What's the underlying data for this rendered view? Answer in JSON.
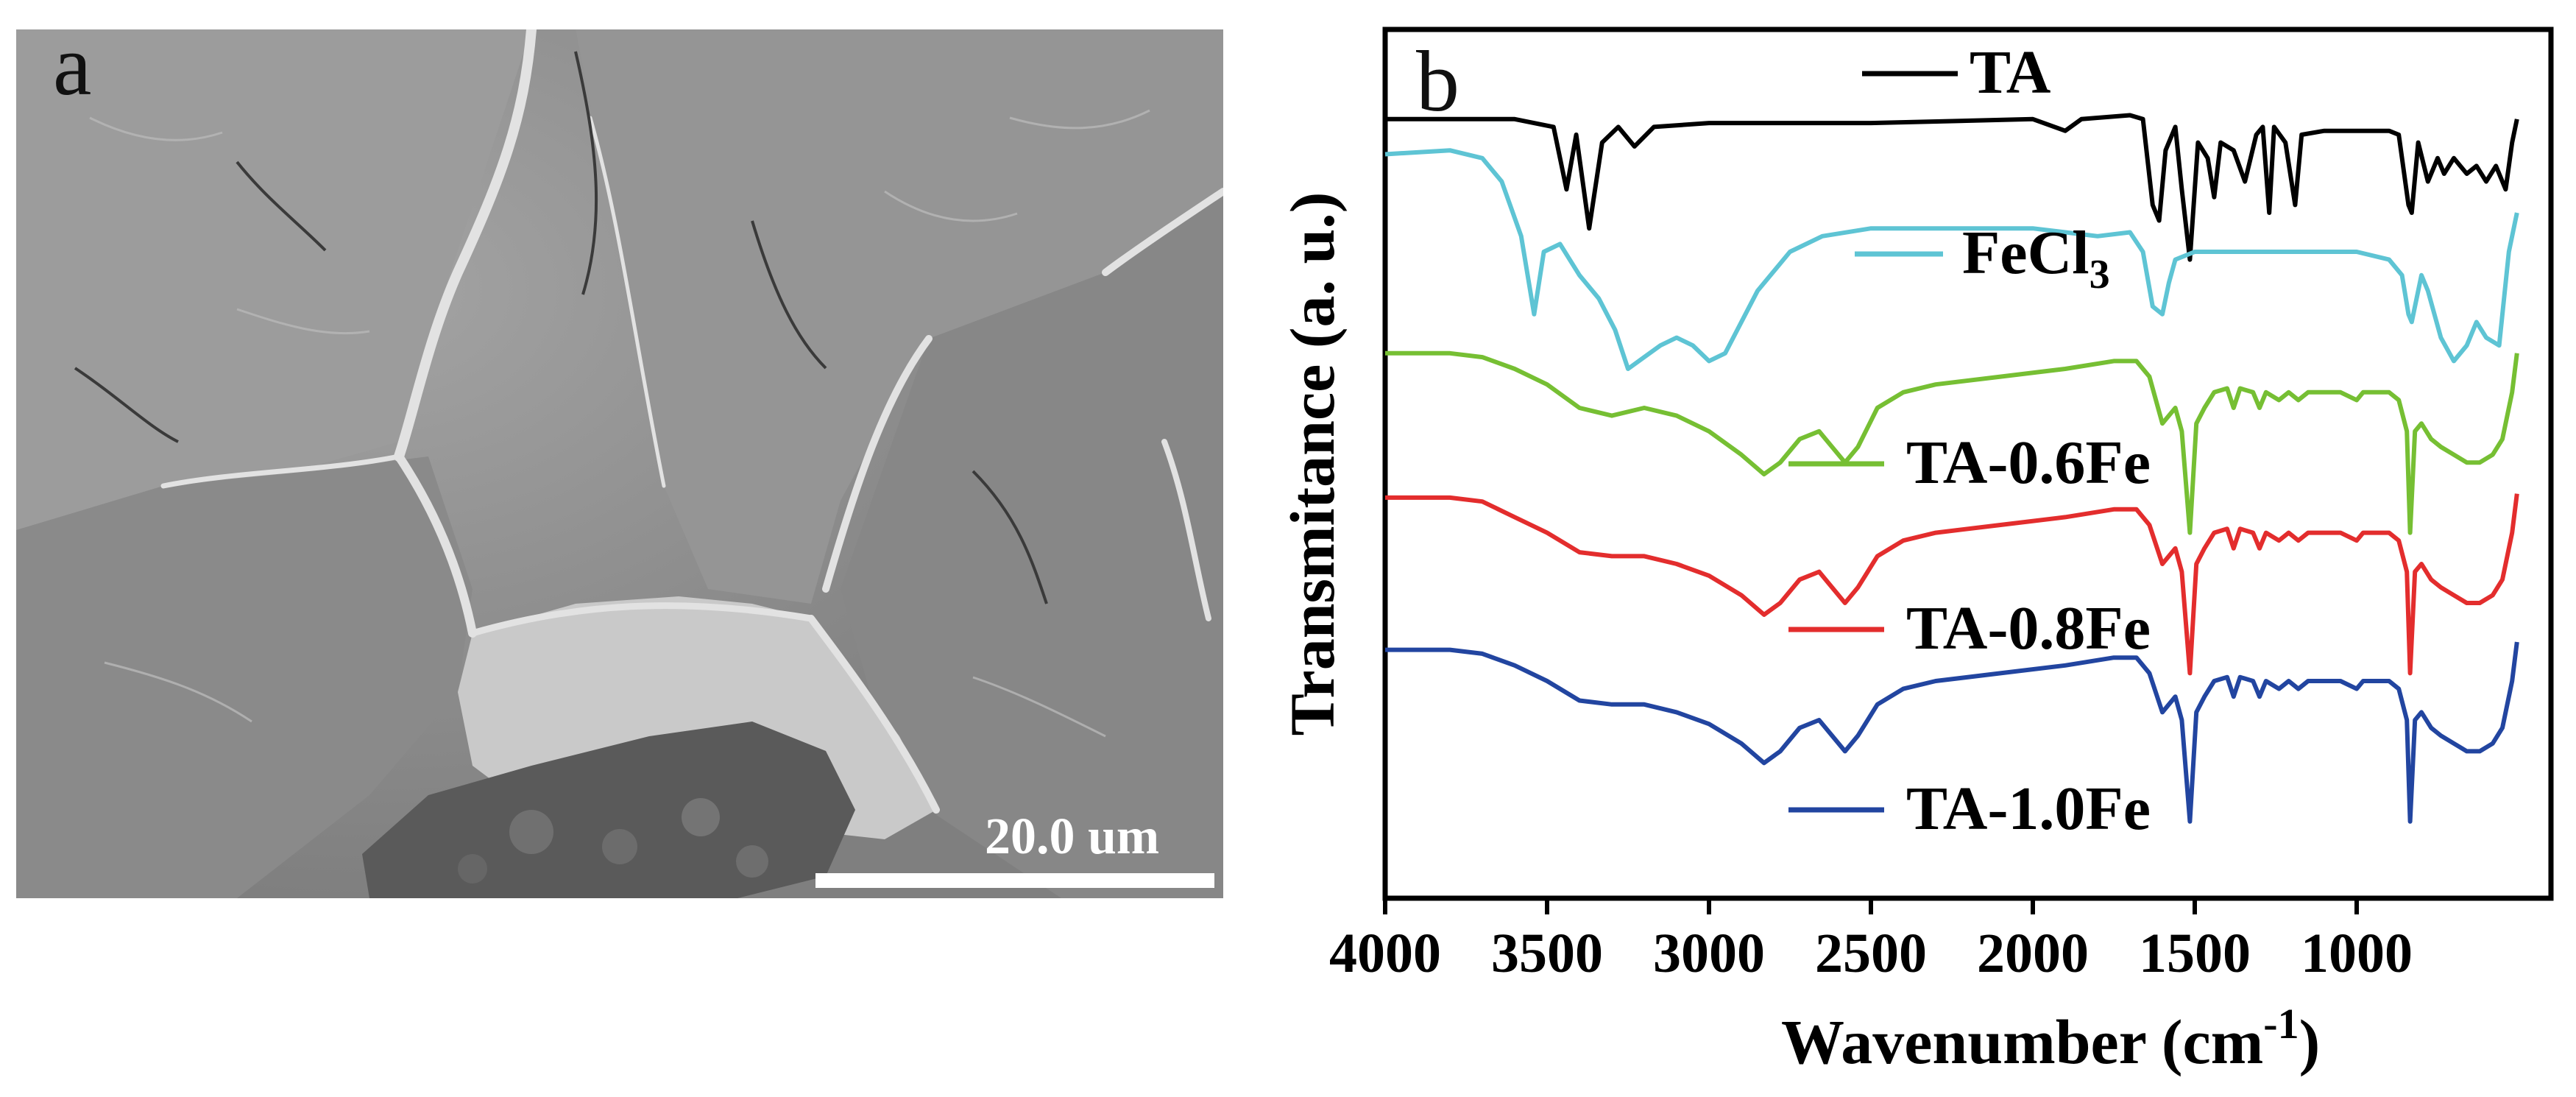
{
  "panel_a": {
    "letter": "a",
    "scale_bar_label": "20.0 um"
  },
  "chart_data": {
    "type": "line",
    "panel_letter": "b",
    "xlabel": "Wavenumber (cm",
    "xlabel_superscript": "-1",
    "xlabel_suffix": ")",
    "ylabel": "Transmitance (a. u.)",
    "xlim": [
      4000,
      400
    ],
    "x_ticks": [
      4000,
      3500,
      3000,
      2500,
      2000,
      1500,
      1000
    ],
    "x_tick_labels": [
      "4000",
      "3500",
      "3000",
      "2500",
      "2000",
      "1500",
      "1000"
    ],
    "y_ticks": [],
    "ylim": [
      0,
      100
    ],
    "series": [
      {
        "name": "TA",
        "label_main": "TA",
        "label_sub": "",
        "color": "#000000",
        "points": [
          [
            4000,
            97
          ],
          [
            3800,
            97
          ],
          [
            3600,
            97
          ],
          [
            3480,
            96
          ],
          [
            3440,
            88
          ],
          [
            3410,
            95
          ],
          [
            3370,
            83
          ],
          [
            3330,
            94
          ],
          [
            3280,
            96
          ],
          [
            3230,
            93.5
          ],
          [
            3170,
            96
          ],
          [
            3000,
            96.5
          ],
          [
            2500,
            96.5
          ],
          [
            2000,
            97
          ],
          [
            1900,
            95.5
          ],
          [
            1850,
            97
          ],
          [
            1700,
            97.5
          ],
          [
            1660,
            97
          ],
          [
            1630,
            86
          ],
          [
            1610,
            84
          ],
          [
            1590,
            93
          ],
          [
            1560,
            96
          ],
          [
            1540,
            88
          ],
          [
            1515,
            79
          ],
          [
            1490,
            94
          ],
          [
            1460,
            92
          ],
          [
            1440,
            87
          ],
          [
            1420,
            94
          ],
          [
            1380,
            93
          ],
          [
            1345,
            89
          ],
          [
            1310,
            95
          ],
          [
            1290,
            96
          ],
          [
            1270,
            85
          ],
          [
            1255,
            96
          ],
          [
            1220,
            94
          ],
          [
            1190,
            86
          ],
          [
            1170,
            95
          ],
          [
            1100,
            95.5
          ],
          [
            1000,
            95.5
          ],
          [
            950,
            95.5
          ],
          [
            900,
            95.5
          ],
          [
            870,
            95
          ],
          [
            840,
            86
          ],
          [
            830,
            85
          ],
          [
            810,
            94
          ],
          [
            780,
            89
          ],
          [
            750,
            92
          ],
          [
            730,
            90
          ],
          [
            700,
            92
          ],
          [
            660,
            90
          ],
          [
            630,
            91
          ],
          [
            600,
            89
          ],
          [
            570,
            91
          ],
          [
            540,
            88
          ],
          [
            520,
            94
          ],
          [
            505,
            97
          ]
        ]
      },
      {
        "name": "FeCl3",
        "label_main": "FeCl",
        "label_sub": "3",
        "color": "#5ec4d4",
        "points": [
          [
            4000,
            92.5
          ],
          [
            3800,
            93
          ],
          [
            3700,
            92
          ],
          [
            3640,
            89
          ],
          [
            3580,
            82
          ],
          [
            3540,
            72
          ],
          [
            3510,
            80
          ],
          [
            3460,
            81
          ],
          [
            3400,
            77
          ],
          [
            3340,
            74
          ],
          [
            3290,
            70
          ],
          [
            3250,
            65
          ],
          [
            3200,
            66.5
          ],
          [
            3150,
            68
          ],
          [
            3100,
            69
          ],
          [
            3050,
            68
          ],
          [
            3000,
            66
          ],
          [
            2950,
            67
          ],
          [
            2850,
            75
          ],
          [
            2750,
            80
          ],
          [
            2650,
            82
          ],
          [
            2500,
            83
          ],
          [
            2300,
            83
          ],
          [
            2000,
            83
          ],
          [
            1800,
            82
          ],
          [
            1700,
            82.5
          ],
          [
            1660,
            80
          ],
          [
            1630,
            73
          ],
          [
            1600,
            72
          ],
          [
            1580,
            76
          ],
          [
            1560,
            79
          ],
          [
            1500,
            80
          ],
          [
            1400,
            80
          ],
          [
            1300,
            80
          ],
          [
            1200,
            80
          ],
          [
            1000,
            80
          ],
          [
            900,
            79
          ],
          [
            860,
            77
          ],
          [
            840,
            72
          ],
          [
            830,
            71
          ],
          [
            800,
            77
          ],
          [
            780,
            75
          ],
          [
            740,
            69
          ],
          [
            700,
            66
          ],
          [
            660,
            68
          ],
          [
            630,
            71
          ],
          [
            600,
            69
          ],
          [
            560,
            68
          ],
          [
            530,
            80
          ],
          [
            505,
            85
          ]
        ]
      },
      {
        "name": "TA-0.6Fe",
        "label_main": "TA-0.6Fe",
        "label_sub": "",
        "color": "#76bf33",
        "points": [
          [
            4000,
            67
          ],
          [
            3800,
            67
          ],
          [
            3700,
            66.5
          ],
          [
            3600,
            65
          ],
          [
            3500,
            63
          ],
          [
            3400,
            60
          ],
          [
            3300,
            59
          ],
          [
            3200,
            60
          ],
          [
            3100,
            59
          ],
          [
            3000,
            57
          ],
          [
            2900,
            54
          ],
          [
            2830,
            51.5
          ],
          [
            2780,
            53
          ],
          [
            2720,
            56
          ],
          [
            2660,
            57
          ],
          [
            2620,
            55
          ],
          [
            2580,
            53
          ],
          [
            2540,
            55
          ],
          [
            2480,
            60
          ],
          [
            2400,
            62
          ],
          [
            2300,
            63
          ],
          [
            2100,
            64
          ],
          [
            1900,
            65
          ],
          [
            1750,
            66
          ],
          [
            1680,
            66
          ],
          [
            1640,
            64
          ],
          [
            1600,
            58
          ],
          [
            1560,
            60
          ],
          [
            1540,
            57
          ],
          [
            1515,
            44
          ],
          [
            1495,
            58
          ],
          [
            1470,
            60
          ],
          [
            1440,
            62
          ],
          [
            1400,
            62.5
          ],
          [
            1380,
            60
          ],
          [
            1360,
            62.5
          ],
          [
            1320,
            62
          ],
          [
            1300,
            60
          ],
          [
            1280,
            62
          ],
          [
            1240,
            61
          ],
          [
            1210,
            62
          ],
          [
            1180,
            61
          ],
          [
            1150,
            62
          ],
          [
            1100,
            62
          ],
          [
            1050,
            62
          ],
          [
            1000,
            61
          ],
          [
            980,
            62
          ],
          [
            950,
            62
          ],
          [
            900,
            62
          ],
          [
            870,
            61
          ],
          [
            845,
            57
          ],
          [
            835,
            44
          ],
          [
            820,
            57
          ],
          [
            800,
            58
          ],
          [
            770,
            56
          ],
          [
            740,
            55
          ],
          [
            700,
            54
          ],
          [
            660,
            53
          ],
          [
            620,
            53
          ],
          [
            580,
            54
          ],
          [
            550,
            56
          ],
          [
            520,
            62
          ],
          [
            505,
            67
          ]
        ]
      },
      {
        "name": "TA-0.8Fe",
        "label_main": "TA-0.8Fe",
        "label_sub": "",
        "color": "#e32d2d",
        "points": [
          [
            4000,
            48.5
          ],
          [
            3800,
            48.5
          ],
          [
            3700,
            48
          ],
          [
            3600,
            46
          ],
          [
            3500,
            44
          ],
          [
            3400,
            41.5
          ],
          [
            3300,
            41
          ],
          [
            3200,
            41
          ],
          [
            3100,
            40
          ],
          [
            3000,
            38.5
          ],
          [
            2900,
            36
          ],
          [
            2830,
            33.5
          ],
          [
            2780,
            35
          ],
          [
            2720,
            38
          ],
          [
            2660,
            39
          ],
          [
            2620,
            37
          ],
          [
            2580,
            35
          ],
          [
            2540,
            37
          ],
          [
            2480,
            41
          ],
          [
            2400,
            43
          ],
          [
            2300,
            44
          ],
          [
            2100,
            45
          ],
          [
            1900,
            46
          ],
          [
            1750,
            47
          ],
          [
            1680,
            47
          ],
          [
            1640,
            45
          ],
          [
            1600,
            40
          ],
          [
            1560,
            42
          ],
          [
            1540,
            39
          ],
          [
            1515,
            26
          ],
          [
            1495,
            40
          ],
          [
            1470,
            42
          ],
          [
            1440,
            44
          ],
          [
            1400,
            44.5
          ],
          [
            1380,
            42
          ],
          [
            1360,
            44.5
          ],
          [
            1320,
            44
          ],
          [
            1300,
            42
          ],
          [
            1280,
            44
          ],
          [
            1240,
            43
          ],
          [
            1210,
            44
          ],
          [
            1180,
            43
          ],
          [
            1150,
            44
          ],
          [
            1100,
            44
          ],
          [
            1050,
            44
          ],
          [
            1000,
            43
          ],
          [
            980,
            44
          ],
          [
            950,
            44
          ],
          [
            900,
            44
          ],
          [
            870,
            43
          ],
          [
            845,
            39
          ],
          [
            835,
            26
          ],
          [
            820,
            39
          ],
          [
            800,
            40
          ],
          [
            770,
            38
          ],
          [
            740,
            37
          ],
          [
            700,
            36
          ],
          [
            660,
            35
          ],
          [
            620,
            35
          ],
          [
            580,
            36
          ],
          [
            550,
            38
          ],
          [
            520,
            44
          ],
          [
            505,
            49
          ]
        ]
      },
      {
        "name": "TA-1.0Fe",
        "label_main": "TA-1.0Fe",
        "label_sub": "",
        "color": "#2245a0",
        "points": [
          [
            4000,
            29
          ],
          [
            3800,
            29
          ],
          [
            3700,
            28.5
          ],
          [
            3600,
            27
          ],
          [
            3500,
            25
          ],
          [
            3400,
            22.5
          ],
          [
            3300,
            22
          ],
          [
            3200,
            22
          ],
          [
            3100,
            21
          ],
          [
            3000,
            19.5
          ],
          [
            2900,
            17
          ],
          [
            2830,
            14.5
          ],
          [
            2780,
            16
          ],
          [
            2720,
            19
          ],
          [
            2660,
            20
          ],
          [
            2620,
            18
          ],
          [
            2580,
            16
          ],
          [
            2540,
            18
          ],
          [
            2480,
            22
          ],
          [
            2400,
            24
          ],
          [
            2300,
            25
          ],
          [
            2100,
            26
          ],
          [
            1900,
            27
          ],
          [
            1750,
            28
          ],
          [
            1680,
            28
          ],
          [
            1640,
            26
          ],
          [
            1600,
            21
          ],
          [
            1560,
            23
          ],
          [
            1540,
            20
          ],
          [
            1515,
            7
          ],
          [
            1495,
            21
          ],
          [
            1470,
            23
          ],
          [
            1440,
            25
          ],
          [
            1400,
            25.5
          ],
          [
            1380,
            23
          ],
          [
            1360,
            25.5
          ],
          [
            1320,
            25
          ],
          [
            1300,
            23
          ],
          [
            1280,
            25
          ],
          [
            1240,
            24
          ],
          [
            1210,
            25
          ],
          [
            1180,
            24
          ],
          [
            1150,
            25
          ],
          [
            1100,
            25
          ],
          [
            1050,
            25
          ],
          [
            1000,
            24
          ],
          [
            980,
            25
          ],
          [
            950,
            25
          ],
          [
            900,
            25
          ],
          [
            870,
            24
          ],
          [
            845,
            20
          ],
          [
            835,
            7
          ],
          [
            820,
            20
          ],
          [
            800,
            21
          ],
          [
            770,
            19
          ],
          [
            740,
            18
          ],
          [
            700,
            17
          ],
          [
            660,
            16
          ],
          [
            620,
            16
          ],
          [
            580,
            17
          ],
          [
            550,
            19
          ],
          [
            520,
            25
          ],
          [
            505,
            30
          ]
        ]
      }
    ],
    "legend_placement": "inline, right of each curve"
  }
}
